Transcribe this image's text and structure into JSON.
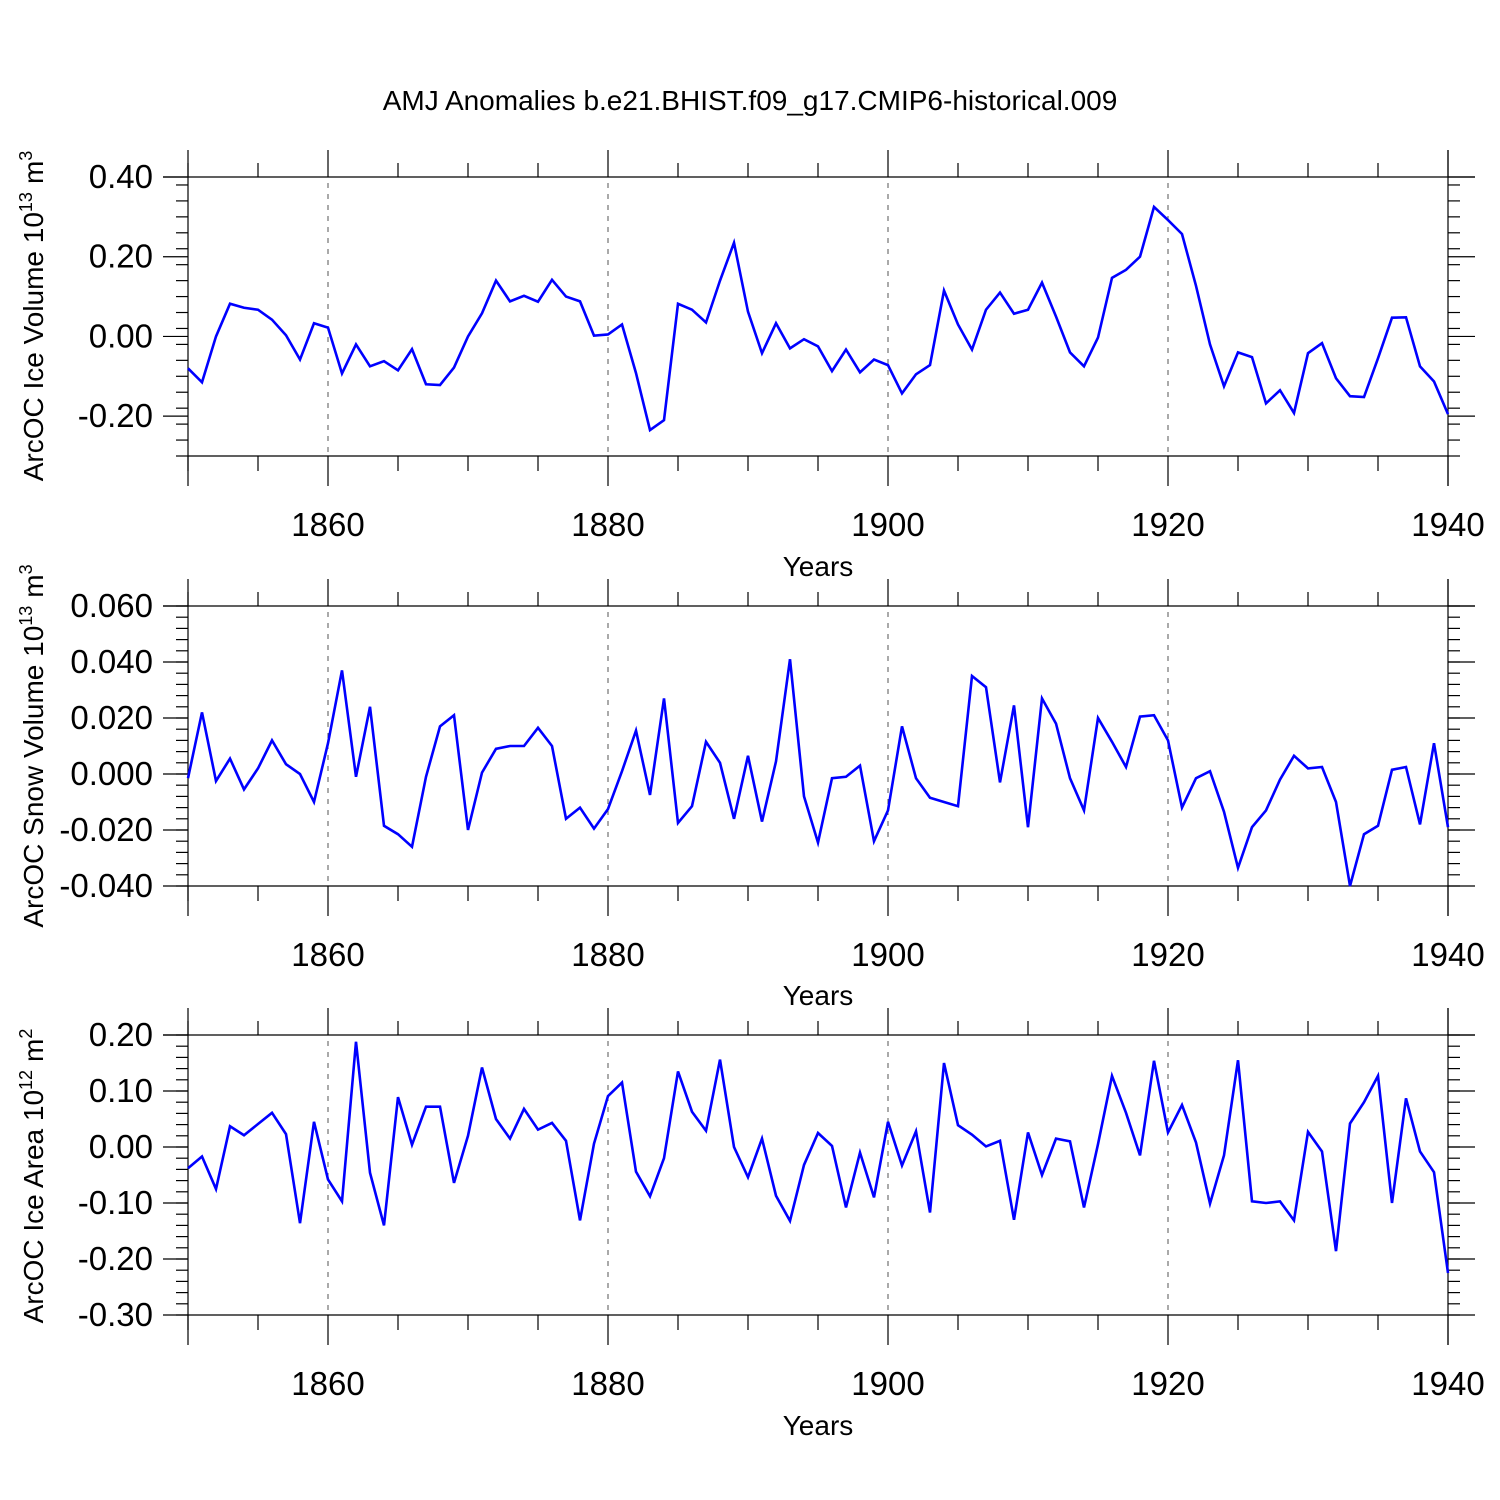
{
  "title": "AMJ Anomalies b.e21.BHIST.f09_g17.CMIP6-historical.009",
  "colors": {
    "line": "#0000ff",
    "axis": "#000000"
  },
  "chart_data": [
    {
      "type": "line",
      "ylabel_main": "ArcOC Ice Volume 10",
      "ylabel_exp": "13",
      "ylabel_unit": "m",
      "ylabel_unit_exp": "3",
      "xlabel": "Years",
      "xlim": [
        1850,
        1940
      ],
      "ylim": [
        -0.3,
        0.4
      ],
      "yticks": [
        -0.2,
        0.0,
        0.2,
        0.4
      ],
      "ytick_labels": [
        "-0.20",
        "0.00",
        "0.20",
        "0.40"
      ],
      "yminor": 0.04,
      "xticks": [
        1860,
        1880,
        1900,
        1920,
        1940
      ],
      "xtick_labels": [
        "1860",
        "1880",
        "1900",
        "1920",
        "1940"
      ],
      "series": [
        {
          "name": "ArcOC Ice Volume",
          "x_start": 1850,
          "values": [
            -0.08,
            -0.115,
            0.0,
            0.082,
            0.072,
            0.067,
            0.042,
            0.003,
            -0.058,
            0.033,
            0.022,
            -0.093,
            -0.02,
            -0.075,
            -0.062,
            -0.085,
            -0.032,
            -0.12,
            -0.122,
            -0.078,
            0.0,
            0.058,
            0.14,
            0.088,
            0.102,
            0.087,
            0.142,
            0.1,
            0.088,
            0.002,
            0.005,
            0.03,
            -0.092,
            -0.235,
            -0.21,
            0.082,
            0.067,
            0.035,
            0.14,
            0.235,
            0.062,
            -0.042,
            0.033,
            -0.03,
            -0.007,
            -0.025,
            -0.087,
            -0.033,
            -0.09,
            -0.058,
            -0.072,
            -0.143,
            -0.095,
            -0.072,
            0.115,
            0.03,
            -0.033,
            0.067,
            0.11,
            0.057,
            0.067,
            0.135,
            0.05,
            -0.04,
            -0.075,
            -0.003,
            0.147,
            0.167,
            0.2,
            0.325,
            0.292,
            0.257,
            0.127,
            -0.02,
            -0.125,
            -0.04,
            -0.052,
            -0.168,
            -0.135,
            -0.192,
            -0.042,
            -0.017,
            -0.105,
            -0.15,
            -0.152,
            -0.055,
            0.047,
            0.048,
            -0.075,
            -0.113,
            -0.195
          ]
        }
      ]
    },
    {
      "type": "line",
      "ylabel_main": "ArcOC Snow Volume 10",
      "ylabel_exp": "13",
      "ylabel_unit": "m",
      "ylabel_unit_exp": "3",
      "xlabel": "Years",
      "xlim": [
        1850,
        1940
      ],
      "ylim": [
        -0.04,
        0.06
      ],
      "yticks": [
        -0.04,
        -0.02,
        0.0,
        0.02,
        0.04,
        0.06
      ],
      "ytick_labels": [
        "-0.040",
        "-0.020",
        "0.000",
        "0.020",
        "0.040",
        "0.060"
      ],
      "yminor": 0.004,
      "xticks": [
        1860,
        1880,
        1900,
        1920,
        1940
      ],
      "xtick_labels": [
        "1860",
        "1880",
        "1900",
        "1920",
        "1940"
      ],
      "series": [
        {
          "name": "ArcOC Snow Volume",
          "x_start": 1850,
          "values": [
            -0.0015,
            0.022,
            -0.0025,
            0.0055,
            -0.0055,
            0.002,
            0.012,
            0.0035,
            0.0,
            -0.01,
            0.011,
            0.037,
            -0.001,
            0.024,
            -0.0185,
            -0.0215,
            -0.026,
            -0.001,
            0.017,
            0.021,
            -0.02,
            0.0005,
            0.009,
            0.01,
            0.01,
            0.0165,
            0.01,
            -0.016,
            -0.012,
            -0.0195,
            -0.0125,
            0.001,
            0.0155,
            -0.0075,
            0.027,
            -0.0175,
            -0.0115,
            0.0115,
            0.004,
            -0.016,
            0.0065,
            -0.017,
            0.0045,
            0.041,
            -0.008,
            -0.0245,
            -0.0015,
            -0.001,
            0.003,
            -0.024,
            -0.013,
            0.017,
            -0.0015,
            -0.0085,
            -0.01,
            -0.0115,
            0.035,
            0.031,
            -0.003,
            0.0245,
            -0.019,
            0.027,
            0.018,
            -0.0015,
            -0.013,
            0.02,
            0.0115,
            0.0025,
            0.0205,
            0.021,
            0.012,
            -0.012,
            -0.0015,
            0.001,
            -0.0135,
            -0.0335,
            -0.019,
            -0.013,
            -0.002,
            0.0065,
            0.002,
            0.0025,
            -0.01,
            -0.04,
            -0.0215,
            -0.0185,
            0.0015,
            0.0025,
            -0.018,
            0.011,
            -0.019
          ]
        }
      ]
    },
    {
      "type": "line",
      "ylabel_main": "ArcOC Ice Area 10",
      "ylabel_exp": "12",
      "ylabel_unit": "m",
      "ylabel_unit_exp": "2",
      "xlabel": "Years",
      "xlim": [
        1850,
        1940
      ],
      "ylim": [
        -0.3,
        0.2
      ],
      "yticks": [
        -0.3,
        -0.2,
        -0.1,
        0.0,
        0.1,
        0.2
      ],
      "ytick_labels": [
        "-0.30",
        "-0.20",
        "-0.10",
        "0.00",
        "0.10",
        "0.20"
      ],
      "yminor": 0.02,
      "xticks": [
        1860,
        1880,
        1900,
        1920,
        1940
      ],
      "xtick_labels": [
        "1860",
        "1880",
        "1900",
        "1920",
        "1940"
      ],
      "series": [
        {
          "name": "ArcOC Ice Area",
          "x_start": 1850,
          "values": [
            -0.038,
            -0.017,
            -0.075,
            0.037,
            0.021,
            0.041,
            0.061,
            0.023,
            -0.136,
            0.045,
            -0.058,
            -0.097,
            0.188,
            -0.046,
            -0.14,
            0.089,
            0.004,
            0.072,
            0.072,
            -0.064,
            0.02,
            0.142,
            0.05,
            0.015,
            0.068,
            0.031,
            0.043,
            0.011,
            -0.131,
            0.006,
            0.091,
            0.115,
            -0.044,
            -0.088,
            -0.02,
            0.135,
            0.063,
            0.029,
            0.156,
            0.0,
            -0.054,
            0.015,
            -0.087,
            -0.132,
            -0.032,
            0.025,
            0.002,
            -0.108,
            -0.01,
            -0.09,
            0.045,
            -0.033,
            0.028,
            -0.117,
            0.15,
            0.039,
            0.022,
            0.001,
            0.011,
            -0.13,
            0.026,
            -0.05,
            0.015,
            0.01,
            -0.108,
            0.005,
            0.127,
            0.061,
            -0.015,
            0.154,
            0.026,
            0.075,
            0.008,
            -0.101,
            -0.015,
            0.155,
            -0.097,
            -0.1,
            -0.097,
            -0.131,
            0.027,
            -0.008,
            -0.186,
            0.042,
            0.08,
            0.127,
            -0.1,
            0.087,
            -0.008,
            -0.045,
            -0.225
          ]
        }
      ]
    }
  ]
}
